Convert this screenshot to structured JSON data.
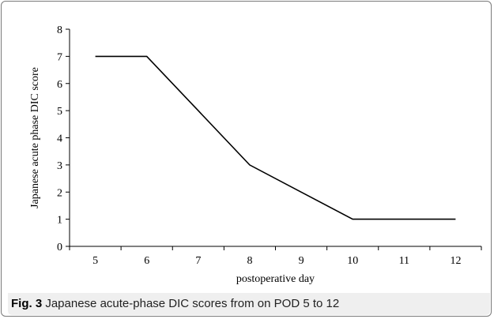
{
  "caption": {
    "label": "Fig. 3",
    "text": "Japanese acute-phase DIC scores from on POD 5 to 12"
  },
  "chart_data": {
    "type": "line",
    "title": "",
    "xlabel": "postoperative day",
    "ylabel": "Japanese acute phase DIC score",
    "categories": [
      "5",
      "6",
      "7",
      "8",
      "9",
      "10",
      "11",
      "12"
    ],
    "x": [
      5,
      6,
      7,
      8,
      9,
      10,
      11,
      12
    ],
    "series": [
      {
        "values": [
          7,
          7,
          5,
          3,
          2,
          1,
          1,
          1
        ]
      }
    ],
    "ylim": [
      0,
      8
    ],
    "yticks": [
      0,
      1,
      2,
      3,
      4,
      5,
      6,
      7,
      8
    ],
    "grid": false,
    "line_color": "#000000"
  }
}
